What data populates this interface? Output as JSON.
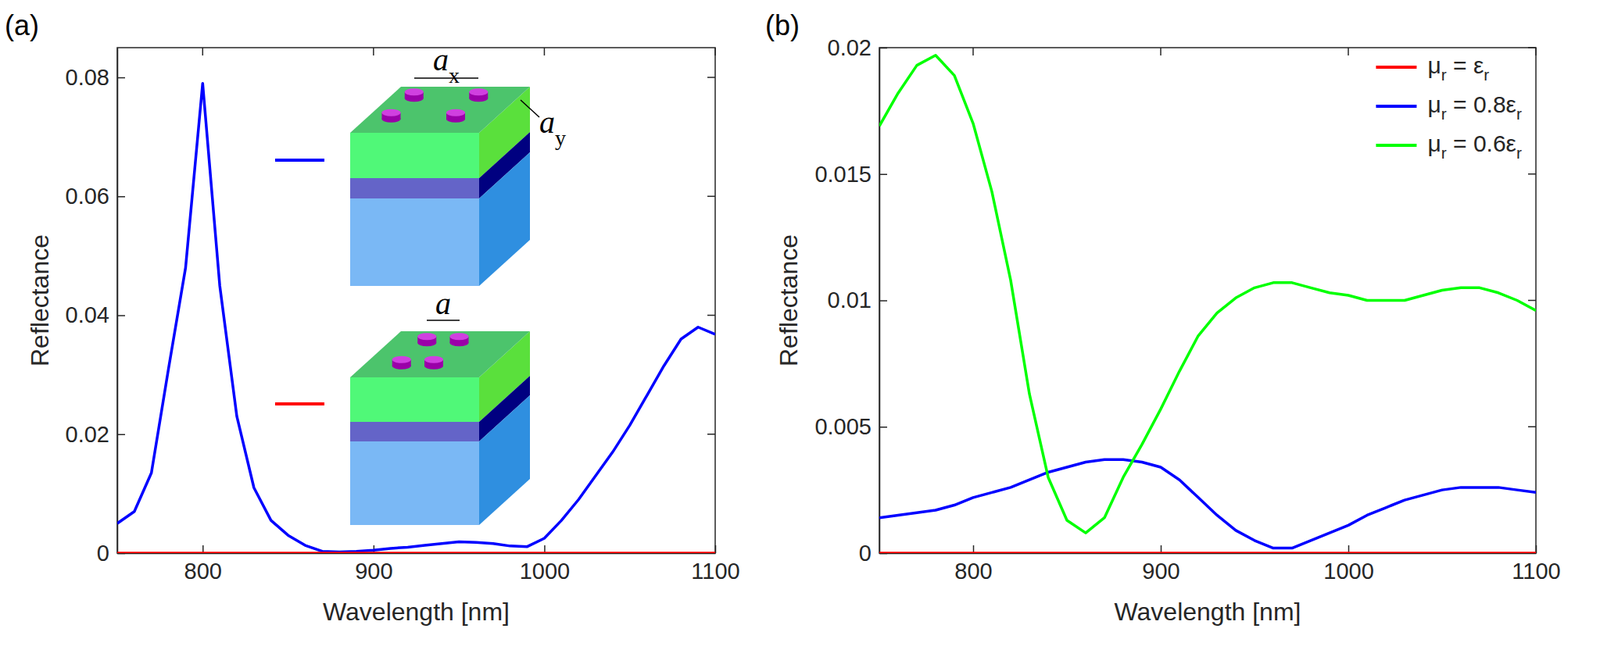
{
  "chart_data": [
    {
      "type": "line",
      "panel": "(a)",
      "x_label": "Wavelength [nm]",
      "y_label": "Reflectance",
      "x": [
        750,
        760,
        770,
        780,
        790,
        800,
        810,
        820,
        830,
        840,
        850,
        860,
        870,
        880,
        890,
        900,
        910,
        920,
        930,
        940,
        950,
        960,
        970,
        980,
        990,
        1000,
        1010,
        1020,
        1030,
        1040,
        1050,
        1060,
        1070,
        1080,
        1090,
        1100
      ],
      "series": [
        {
          "color": "#0000ff",
          "values": [
            0.005,
            0.007,
            0.0135,
            0.031,
            0.048,
            0.079,
            0.045,
            0.023,
            0.011,
            0.0055,
            0.003,
            0.0013,
            0.0003,
            0.0002,
            0.0003,
            0.0005,
            0.0008,
            0.001,
            0.0013,
            0.0016,
            0.0019,
            0.0018,
            0.0016,
            0.0012,
            0.0011,
            0.0025,
            0.0055,
            0.009,
            0.013,
            0.017,
            0.0215,
            0.0265,
            0.0315,
            0.036,
            0.038,
            0.0368
          ]
        },
        {
          "color": "#ff0000",
          "values": [
            0,
            0,
            0,
            0,
            0,
            0,
            0,
            0,
            0,
            0,
            0,
            0,
            0,
            0,
            0,
            0,
            0,
            0,
            0,
            0,
            0,
            0,
            0,
            0,
            0,
            0,
            0,
            0,
            0,
            0,
            0,
            0,
            0,
            0,
            0,
            0
          ]
        }
      ],
      "annotations": [
        "ax",
        "ay",
        "a"
      ],
      "xlim": [
        750,
        1100
      ],
      "ylim": [
        0,
        0.085
      ],
      "xticks": [
        800,
        900,
        1000,
        1100
      ],
      "yticks": [
        0,
        0.02,
        0.04,
        0.06,
        0.08
      ],
      "grid": false
    },
    {
      "type": "line",
      "panel": "(b)",
      "x_label": "Wavelength [nm]",
      "y_label": "Reflectance",
      "x": [
        750,
        760,
        770,
        780,
        790,
        800,
        810,
        820,
        830,
        840,
        850,
        860,
        870,
        880,
        890,
        900,
        910,
        920,
        930,
        940,
        950,
        960,
        970,
        980,
        990,
        1000,
        1010,
        1020,
        1030,
        1040,
        1050,
        1060,
        1070,
        1080,
        1090,
        1100
      ],
      "series": [
        {
          "name": "μr = εr",
          "color": "#ff0000",
          "values": [
            0,
            0,
            0,
            0,
            0,
            0,
            0,
            0,
            0,
            0,
            0,
            0,
            0,
            0,
            0,
            0,
            0,
            0,
            0,
            0,
            0,
            0,
            0,
            0,
            0,
            0,
            0,
            0,
            0,
            0,
            0,
            0,
            0,
            0,
            0,
            0
          ]
        },
        {
          "name": "μr = 0.8εr",
          "color": "#0000ff",
          "values": [
            0.0014,
            0.0015,
            0.0016,
            0.0017,
            0.0019,
            0.0022,
            0.0024,
            0.0026,
            0.0029,
            0.0032,
            0.0034,
            0.0036,
            0.0037,
            0.0037,
            0.0036,
            0.0034,
            0.0029,
            0.0022,
            0.0015,
            0.0009,
            0.0005,
            0.0002,
            0.0002,
            0.0005,
            0.0008,
            0.0011,
            0.0015,
            0.0018,
            0.0021,
            0.0023,
            0.0025,
            0.0026,
            0.0026,
            0.0026,
            0.0025,
            0.0024
          ]
        },
        {
          "name": "μr = 0.6εr",
          "color": "#00ff00",
          "values": [
            0.0169,
            0.0182,
            0.0193,
            0.0197,
            0.0189,
            0.017,
            0.0143,
            0.0108,
            0.0063,
            0.003,
            0.0013,
            0.0008,
            0.0014,
            0.003,
            0.0043,
            0.0057,
            0.0072,
            0.0086,
            0.0095,
            0.0101,
            0.0105,
            0.0107,
            0.0107,
            0.0105,
            0.0103,
            0.0102,
            0.01,
            0.01,
            0.01,
            0.0102,
            0.0104,
            0.0105,
            0.0105,
            0.0103,
            0.01,
            0.0096
          ]
        }
      ],
      "legend": "upper right",
      "xlim": [
        750,
        1100
      ],
      "ylim": [
        0,
        0.02
      ],
      "xticks": [
        800,
        900,
        1000,
        1100
      ],
      "yticks": [
        0,
        0.005,
        0.01,
        0.015,
        0.02
      ],
      "grid": false
    }
  ]
}
